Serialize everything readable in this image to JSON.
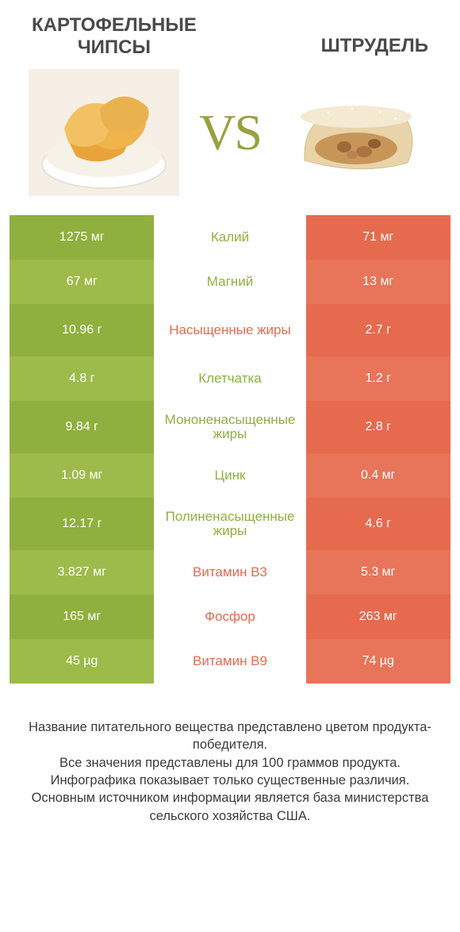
{
  "colors": {
    "green": "#8fb03e",
    "green_alt": "#9cbb4a",
    "orange": "#e66a4e",
    "orange_alt": "#e8745a",
    "title_text": "#4a4a4a",
    "vs_text": "#99a041",
    "footer_text": "#3b3b3b",
    "background": "#ffffff"
  },
  "typography": {
    "title_fontsize": 24,
    "value_fontsize": 16,
    "nutrient_fontsize": 17,
    "vs_fontsize": 64,
    "footer_fontsize": 16.5
  },
  "header": {
    "left_title": "КАРТОФЕЛЬНЫЕ\nЧИПСЫ",
    "right_title": "ШТРУДЕЛЬ",
    "vs_label": "VS"
  },
  "images": {
    "left_name": "chips-image",
    "right_name": "strudel-image"
  },
  "rows": [
    {
      "left": "1275 мг",
      "label": "Калий",
      "right": "71 мг",
      "winner": "left",
      "tall": false
    },
    {
      "left": "67 мг",
      "label": "Магний",
      "right": "13 мг",
      "winner": "left",
      "tall": false
    },
    {
      "left": "10.96 г",
      "label": "Насыщенные жиры",
      "right": "2.7 г",
      "winner": "right",
      "tall": true
    },
    {
      "left": "4.8 г",
      "label": "Клетчатка",
      "right": "1.2 г",
      "winner": "left",
      "tall": false
    },
    {
      "left": "9.84 г",
      "label": "Мононенасыщенные жиры",
      "right": "2.8 г",
      "winner": "left",
      "tall": true
    },
    {
      "left": "1.09 мг",
      "label": "Цинк",
      "right": "0.4 мг",
      "winner": "left",
      "tall": false
    },
    {
      "left": "12.17 г",
      "label": "Полиненасыщенные жиры",
      "right": "4.6 г",
      "winner": "left",
      "tall": true
    },
    {
      "left": "3.827 мг",
      "label": "Витамин B3",
      "right": "5.3 мг",
      "winner": "right",
      "tall": false
    },
    {
      "left": "165 мг",
      "label": "Фосфор",
      "right": "263 мг",
      "winner": "right",
      "tall": false
    },
    {
      "left": "45 µg",
      "label": "Витамин B9",
      "right": "74 µg",
      "winner": "right",
      "tall": false
    }
  ],
  "footer": {
    "line1": "Название питательного вещества представлено цветом продукта-победителя.",
    "line2": "Все значения представлены для 100 граммов продукта.",
    "line3": "Инфографика показывает только существенные различия.",
    "line4": "Основным источником информации является база министерства сельского хозяйства США."
  }
}
